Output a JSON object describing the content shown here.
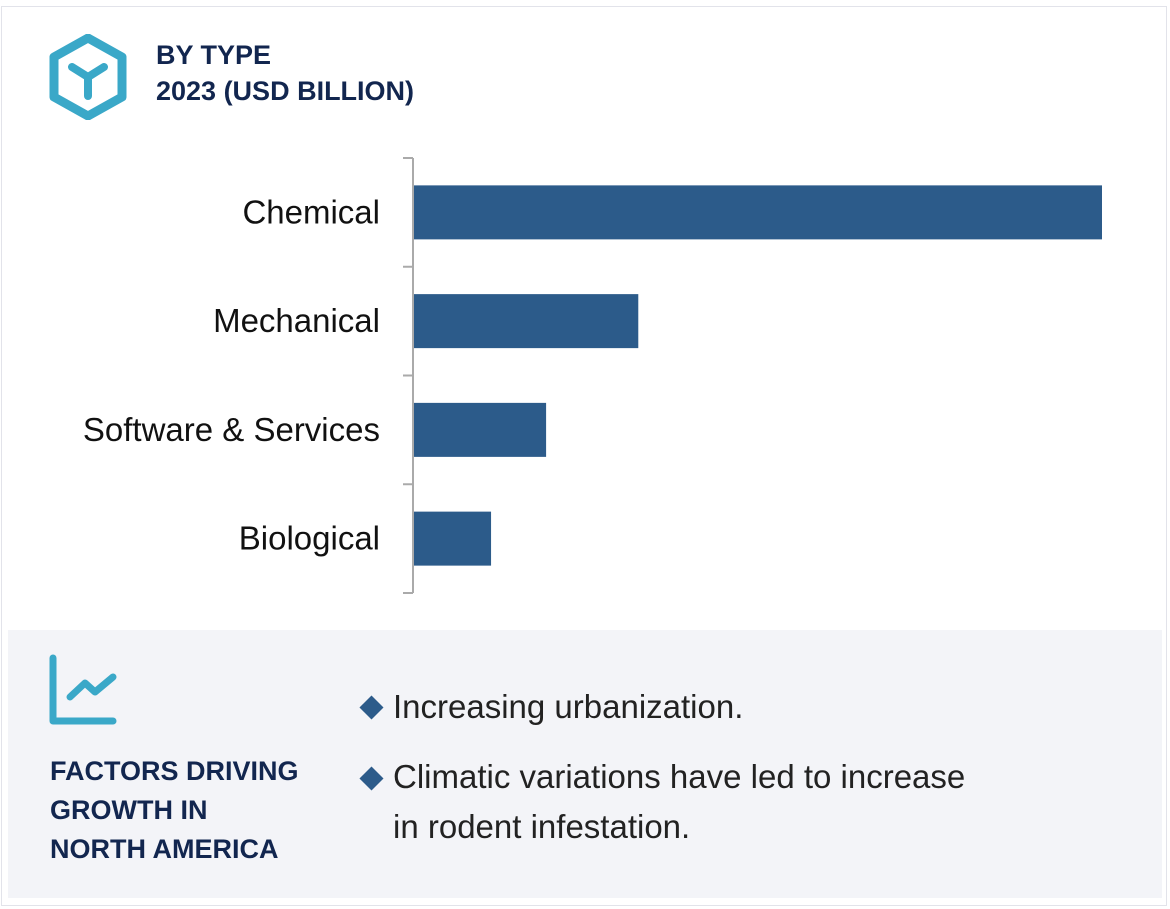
{
  "header": {
    "line1": "BY TYPE",
    "line2": "2023 (USD BILLION)",
    "icon": "hexagon-y-icon"
  },
  "chart_data": {
    "type": "bar",
    "orientation": "horizontal",
    "title": "BY TYPE 2023 (USD BILLION)",
    "categories": [
      "Chemical",
      "Mechanical",
      "Software & Services",
      "Biological"
    ],
    "values": [
      100,
      32.6,
      19.2,
      11.2
    ],
    "value_note": "relative bar lengths, no axis values printed",
    "bar_color": "#2c5b8a",
    "grid": false,
    "legend": "none"
  },
  "factors": {
    "icon": "line-chart-icon",
    "title_lines": [
      "FACTORS DRIVING",
      "GROWTH IN",
      "NORTH AMERICA"
    ],
    "bullets": [
      "Increasing urbanization.",
      "Climatic variations have led to increase",
      "in rodent infestation."
    ]
  },
  "colors": {
    "accent": "#3aa8c8",
    "navy": "#12264f",
    "bar": "#2c5b8a",
    "panel": "#f3f4f8"
  }
}
